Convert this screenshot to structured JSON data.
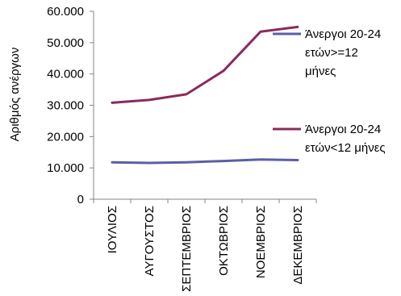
{
  "chart_data": {
    "type": "line",
    "ylabel": "Αριθμός ανέργων",
    "xlabel": "",
    "categories": [
      "ΙΟΥΛΙΟΣ",
      "ΑΥΓΟΥΣΤΟΣ",
      "ΣΕΠΤΕΜΒΡΙΟΣ",
      "ΟΚΤΩΒΡΙΟΣ",
      "ΝΟΕΜΒΡΙΟΣ",
      "ΔΕΚΕΜΒΡΙΟΣ"
    ],
    "ylim": [
      0,
      60000
    ],
    "yticks": [
      0,
      10000,
      20000,
      30000,
      40000,
      50000,
      60000
    ],
    "ytick_labels": [
      "0",
      "10.000",
      "20.000",
      "30.000",
      "40.000",
      "50.000",
      "60.000"
    ],
    "grid": false,
    "legend_position": "right",
    "series": [
      {
        "name_lines": [
          "Άνεργοι 20-24",
          "ετών>=12",
          "μήνες"
        ],
        "color": "#5b5ea6",
        "values": [
          11800,
          11600,
          11800,
          12200,
          12700,
          12500
        ]
      },
      {
        "name_lines": [
          "Άνεργοι 20-24",
          "ετών<12 μήνες"
        ],
        "color": "#8c2a5c",
        "values": [
          30800,
          31700,
          33500,
          41000,
          53500,
          55000
        ]
      }
    ]
  }
}
